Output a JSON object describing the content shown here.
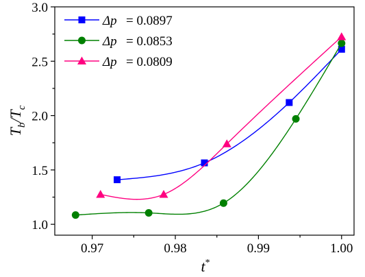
{
  "chart_data": {
    "type": "line",
    "xlabel": "t*",
    "ylabel": "Tb/Tc",
    "xlim": [
      0.9655,
      1.0015
    ],
    "ylim": [
      0.9,
      3.0
    ],
    "x_ticks": [
      "0.97",
      "0.98",
      "0.99",
      "1.00"
    ],
    "y_ticks": [
      "1.0",
      "1.5",
      "2.0",
      "2.5",
      "3.0"
    ],
    "grid": false,
    "legend_position": "top-left",
    "series": [
      {
        "name": "Δp = 0.0897",
        "label_symbol": "Δp",
        "label_value": "= 0.0897",
        "color": "#0000ff",
        "marker": "square",
        "x": [
          0.973,
          0.9835,
          0.9937,
          1.0
        ],
        "y": [
          1.41,
          1.565,
          2.12,
          2.61
        ]
      },
      {
        "name": "Δp = 0.0853",
        "label_symbol": "Δp",
        "label_value": "= 0.0853",
        "color": "#008000",
        "marker": "circle",
        "x": [
          0.968,
          0.9768,
          0.9858,
          0.9945,
          1.0
        ],
        "y": [
          1.085,
          1.105,
          1.195,
          1.97,
          2.665
        ]
      },
      {
        "name": "Δp = 0.0809",
        "label_symbol": "Δp",
        "label_value": "= 0.0809",
        "color": "#ff0080",
        "marker": "triangle",
        "x": [
          0.971,
          0.9786,
          0.9862,
          1.0
        ],
        "y": [
          1.275,
          1.275,
          1.74,
          2.725
        ]
      }
    ]
  }
}
